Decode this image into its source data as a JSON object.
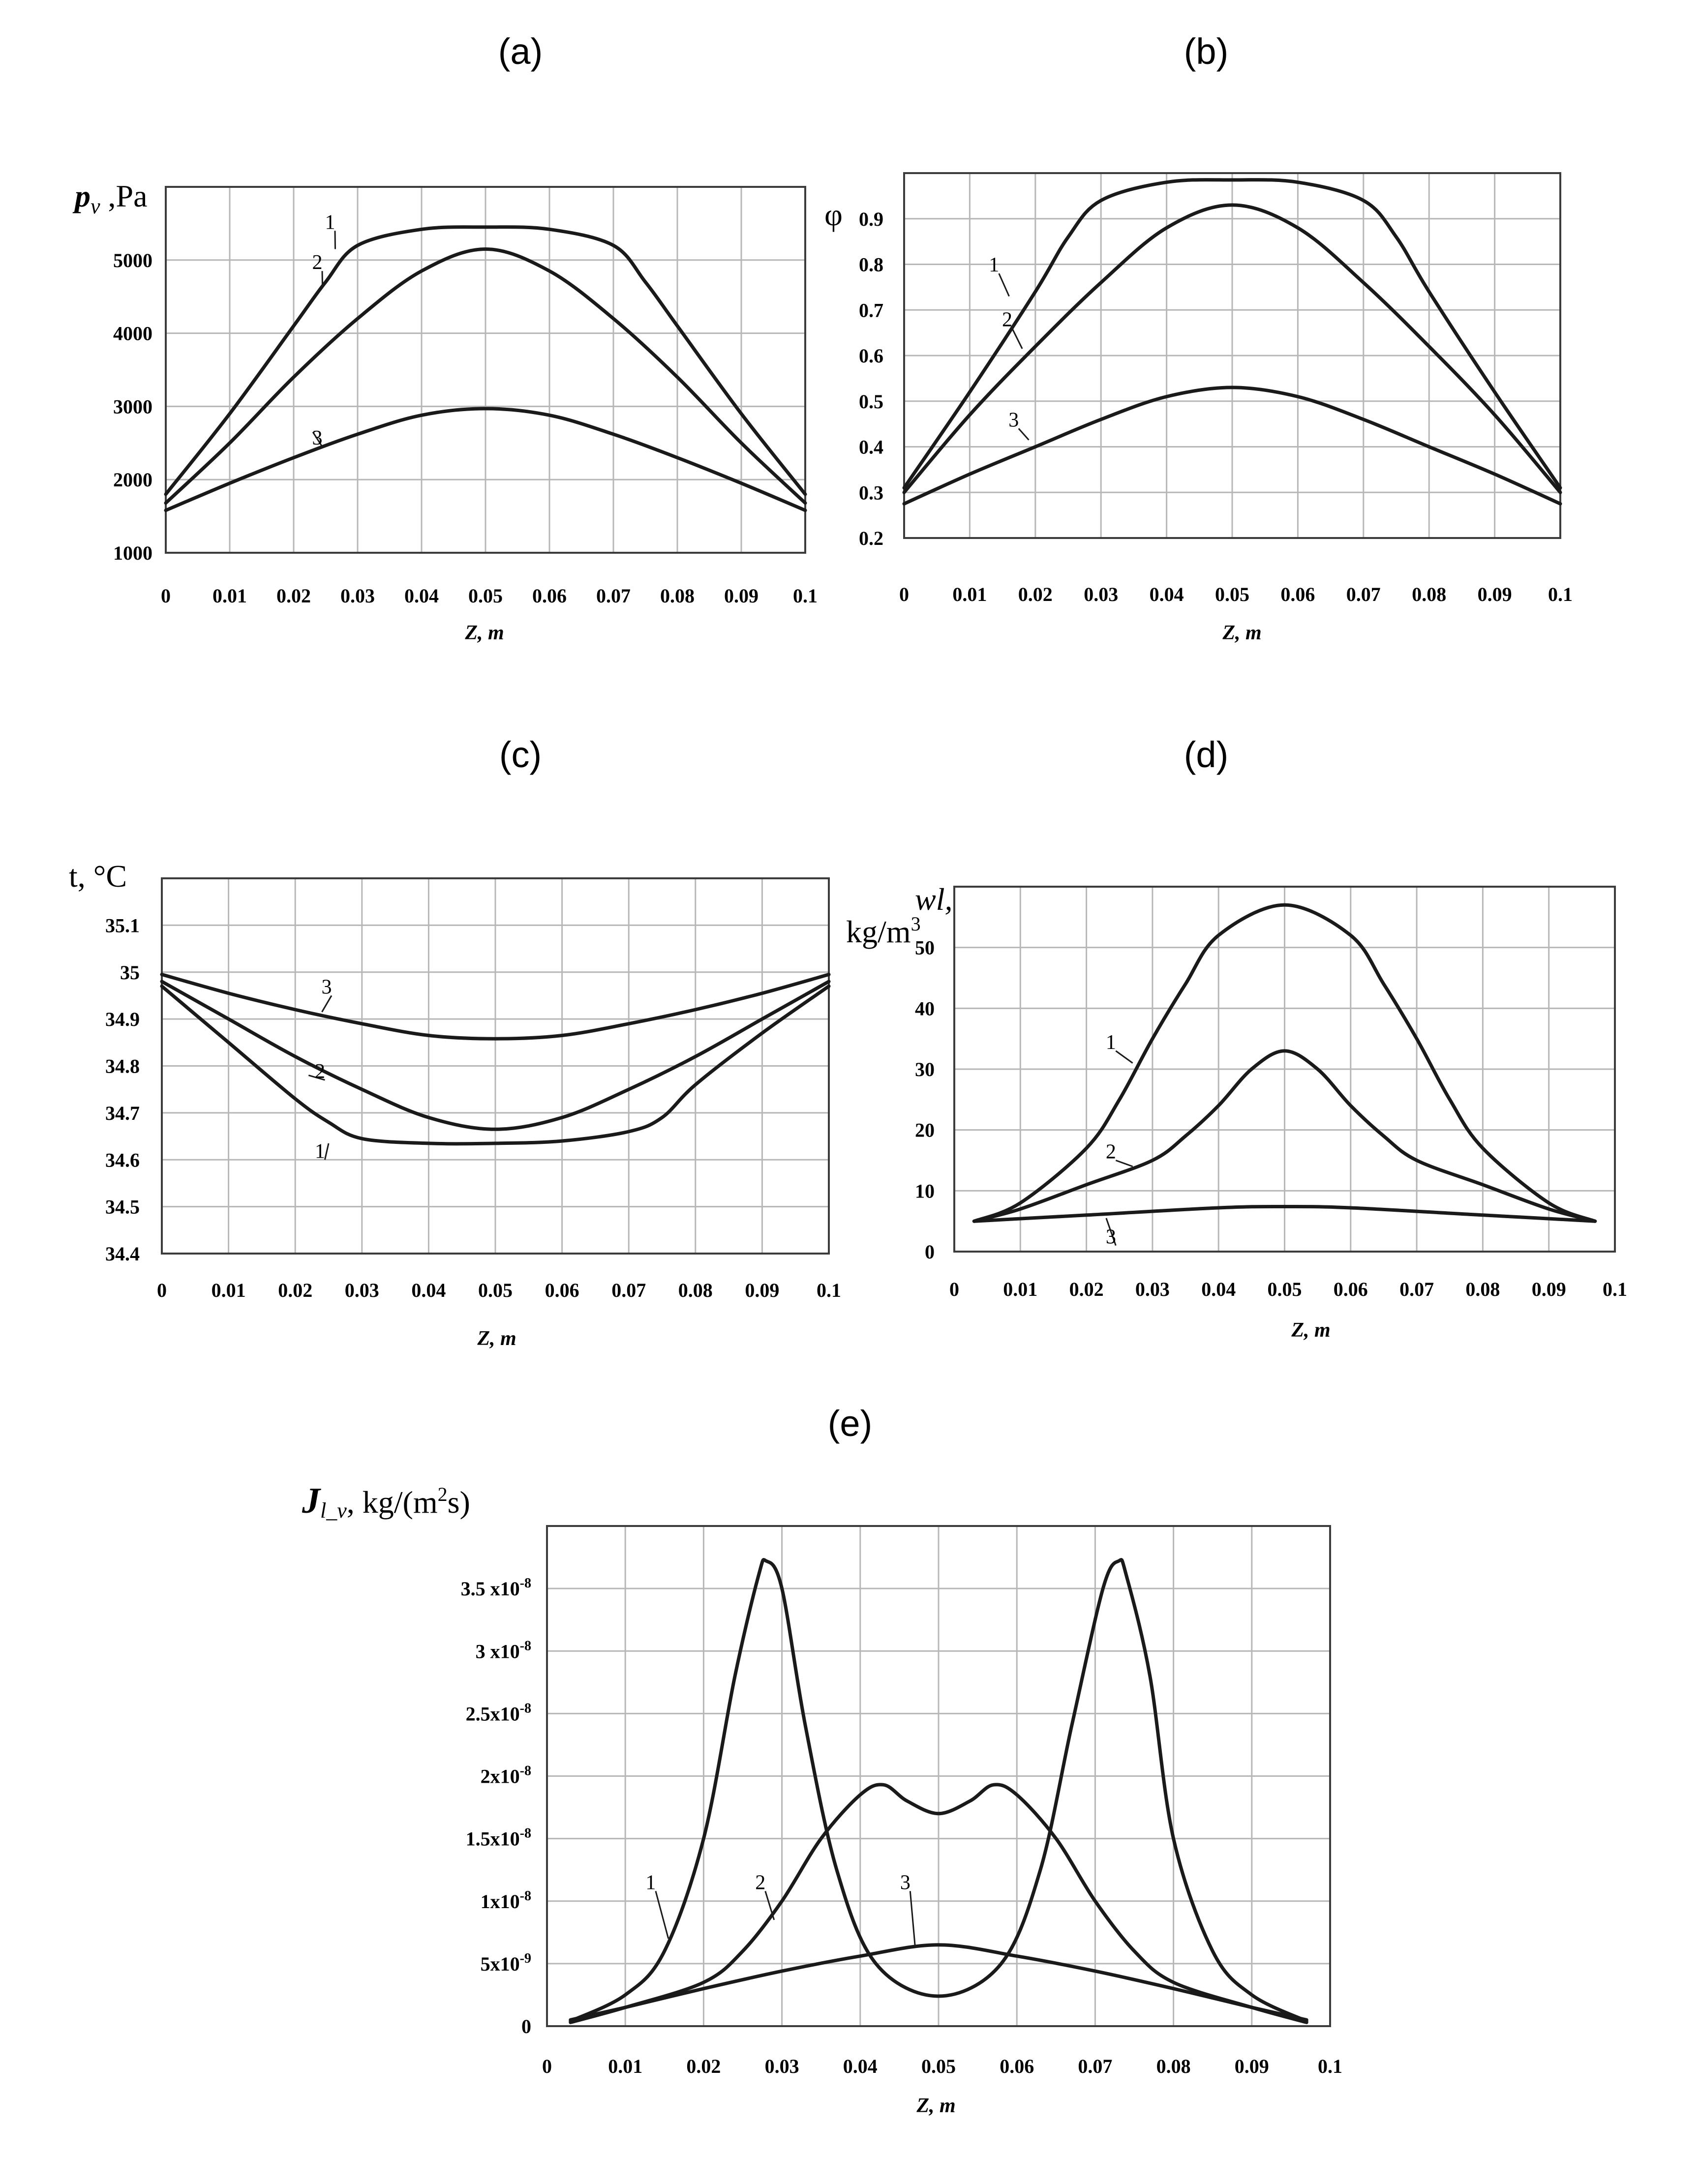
{
  "chart_data": [
    {
      "id": "a",
      "panel_label": "(a)",
      "type": "line",
      "ylabel": "p_v ,Pa",
      "ylabel_html": {
        "main": "p",
        "sub": "v",
        "tail": " ,Pa"
      },
      "xlabel": "Z, m",
      "xlim": [
        0,
        0.1
      ],
      "ylim": [
        1000,
        6000
      ],
      "xticks": [
        "0",
        "0.01",
        "0.02",
        "0.03",
        "0.04",
        "0.05",
        "0.06",
        "0.07",
        "0.08",
        "0.09",
        "0.1"
      ],
      "yticks": [
        {
          "v": 1000,
          "t": "1000"
        },
        {
          "v": 2000,
          "t": "2000"
        },
        {
          "v": 3000,
          "t": "3000"
        },
        {
          "v": 4000,
          "t": "4000"
        },
        {
          "v": 5000,
          "t": "5000"
        }
      ],
      "series": [
        {
          "name": "1",
          "x": [
            0,
            0.01,
            0.02,
            0.025,
            0.03,
            0.04,
            0.05,
            0.06,
            0.07,
            0.075,
            0.08,
            0.09,
            0.1
          ],
          "y": [
            1800,
            2900,
            4100,
            4700,
            5200,
            5420,
            5450,
            5420,
            5200,
            4700,
            4100,
            2900,
            1800
          ]
        },
        {
          "name": "2",
          "x": [
            0,
            0.01,
            0.02,
            0.03,
            0.04,
            0.05,
            0.06,
            0.07,
            0.08,
            0.09,
            0.1
          ],
          "y": [
            1680,
            2500,
            3400,
            4200,
            4850,
            5150,
            4850,
            4200,
            3400,
            2500,
            1680
          ]
        },
        {
          "name": "3",
          "x": [
            0,
            0.01,
            0.02,
            0.03,
            0.04,
            0.05,
            0.06,
            0.07,
            0.08,
            0.09,
            0.1
          ],
          "y": [
            1580,
            1950,
            2300,
            2620,
            2880,
            2970,
            2880,
            2620,
            2300,
            1950,
            1580
          ]
        }
      ],
      "labels": [
        {
          "text": "1",
          "x": 0.026,
          "y": 5400,
          "tx": 0.0265,
          "ty": 5150
        },
        {
          "text": "2",
          "x": 0.024,
          "y": 4850,
          "tx": 0.0245,
          "ty": 4650
        },
        {
          "text": "3",
          "x": 0.024,
          "y": 2450,
          "tx": 0.023,
          "ty": 2650
        }
      ]
    },
    {
      "id": "b",
      "panel_label": "(b)",
      "type": "line",
      "ylabel": "φ",
      "xlabel": "Z, m",
      "xlim": [
        0,
        0.1
      ],
      "ylim": [
        0.2,
        1.0
      ],
      "xticks": [
        "0",
        "0.01",
        "0.02",
        "0.03",
        "0.04",
        "0.05",
        "0.06",
        "0.07",
        "0.08",
        "0.09",
        "0.1"
      ],
      "yticks": [
        {
          "v": 0.2,
          "t": "0.2"
        },
        {
          "v": 0.3,
          "t": "0.3"
        },
        {
          "v": 0.4,
          "t": "0.4"
        },
        {
          "v": 0.5,
          "t": "0.5"
        },
        {
          "v": 0.6,
          "t": "0.6"
        },
        {
          "v": 0.7,
          "t": "0.7"
        },
        {
          "v": 0.8,
          "t": "0.8"
        },
        {
          "v": 0.9,
          "t": "0.9"
        }
      ],
      "series": [
        {
          "name": "1",
          "x": [
            0,
            0.01,
            0.02,
            0.025,
            0.03,
            0.04,
            0.05,
            0.06,
            0.07,
            0.075,
            0.08,
            0.09,
            0.1
          ],
          "y": [
            0.31,
            0.52,
            0.74,
            0.86,
            0.94,
            0.98,
            0.985,
            0.98,
            0.94,
            0.86,
            0.74,
            0.52,
            0.31
          ],
          "smooth": true
        },
        {
          "name": "2",
          "x": [
            0,
            0.01,
            0.02,
            0.03,
            0.04,
            0.05,
            0.06,
            0.07,
            0.08,
            0.09,
            0.1
          ],
          "y": [
            0.3,
            0.47,
            0.62,
            0.76,
            0.88,
            0.93,
            0.88,
            0.76,
            0.62,
            0.47,
            0.3
          ]
        },
        {
          "name": "3",
          "x": [
            0,
            0.01,
            0.02,
            0.03,
            0.04,
            0.05,
            0.06,
            0.07,
            0.08,
            0.09,
            0.1
          ],
          "y": [
            0.275,
            0.34,
            0.4,
            0.46,
            0.51,
            0.53,
            0.51,
            0.46,
            0.4,
            0.34,
            0.275
          ]
        }
      ],
      "labels": [
        {
          "text": "1",
          "x": 0.014,
          "y": 0.78,
          "tx": 0.016,
          "ty": 0.73
        },
        {
          "text": "2",
          "x": 0.016,
          "y": 0.66,
          "tx": 0.018,
          "ty": 0.615
        },
        {
          "text": "3",
          "x": 0.017,
          "y": 0.44,
          "tx": 0.019,
          "ty": 0.415
        }
      ]
    },
    {
      "id": "c",
      "panel_label": "(c)",
      "type": "line",
      "ylabel": "t, °C",
      "xlabel": "Z, m",
      "xlim": [
        0,
        0.1
      ],
      "ylim": [
        34.4,
        35.2
      ],
      "xticks": [
        "0",
        "0.01",
        "0.02",
        "0.03",
        "0.04",
        "0.05",
        "0.06",
        "0.07",
        "0.08",
        "0.09",
        "0.1"
      ],
      "yticks": [
        {
          "v": 34.4,
          "t": "34.4"
        },
        {
          "v": 34.5,
          "t": "34.5"
        },
        {
          "v": 34.6,
          "t": "34.6"
        },
        {
          "v": 34.7,
          "t": "34.7"
        },
        {
          "v": 34.8,
          "t": "34.8"
        },
        {
          "v": 34.9,
          "t": "34.9"
        },
        {
          "v": 35.0,
          "t": "35"
        },
        {
          "v": 35.1,
          "t": "35.1"
        }
      ],
      "series": [
        {
          "name": "1",
          "x": [
            0,
            0.01,
            0.02,
            0.025,
            0.03,
            0.04,
            0.05,
            0.06,
            0.07,
            0.075,
            0.08,
            0.09,
            0.1
          ],
          "y": [
            34.97,
            34.85,
            34.73,
            34.68,
            34.645,
            34.635,
            34.635,
            34.64,
            34.66,
            34.69,
            34.76,
            34.87,
            34.97
          ]
        },
        {
          "name": "2",
          "x": [
            0,
            0.01,
            0.02,
            0.03,
            0.04,
            0.05,
            0.06,
            0.07,
            0.08,
            0.09,
            0.1
          ],
          "y": [
            34.98,
            34.9,
            34.82,
            34.75,
            34.69,
            34.665,
            34.69,
            34.75,
            34.82,
            34.9,
            34.98
          ]
        },
        {
          "name": "3",
          "x": [
            0,
            0.01,
            0.02,
            0.03,
            0.04,
            0.05,
            0.06,
            0.07,
            0.08,
            0.09,
            0.1
          ],
          "y": [
            34.995,
            34.955,
            34.92,
            34.89,
            34.865,
            34.858,
            34.865,
            34.89,
            34.92,
            34.955,
            34.995
          ]
        }
      ],
      "labels": [
        {
          "text": "1",
          "x": 0.024,
          "y": 34.6,
          "tx": 0.025,
          "ty": 34.635
        },
        {
          "text": "2",
          "x": 0.024,
          "y": 34.77,
          "tx": 0.022,
          "ty": 34.78
        },
        {
          "text": "3",
          "x": 0.025,
          "y": 34.95,
          "tx": 0.024,
          "ty": 34.915
        }
      ]
    },
    {
      "id": "d",
      "panel_label": "(d)",
      "type": "line",
      "ylabel": "wl, kg/m3",
      "ylabel_html": {
        "line1": "wl,",
        "line2": "kg/m",
        "sup": "3"
      },
      "xlabel": "Z, m",
      "xlim": [
        0,
        0.1
      ],
      "ylim": [
        0,
        60
      ],
      "xticks": [
        "0",
        "0.01",
        "0.02",
        "0.03",
        "0.04",
        "0.05",
        "0.06",
        "0.07",
        "0.08",
        "0.09",
        "0.1"
      ],
      "yticks": [
        {
          "v": 0,
          "t": "0"
        },
        {
          "v": 10,
          "t": "10"
        },
        {
          "v": 20,
          "t": "20"
        },
        {
          "v": 30,
          "t": "30"
        },
        {
          "v": 40,
          "t": "40"
        },
        {
          "v": 50,
          "t": "50"
        }
      ],
      "series": [
        {
          "name": "1",
          "x": [
            0.003,
            0.01,
            0.02,
            0.025,
            0.03,
            0.035,
            0.04,
            0.05,
            0.06,
            0.065,
            0.07,
            0.075,
            0.08,
            0.09,
            0.097
          ],
          "y": [
            5,
            8,
            17,
            25,
            35,
            44,
            52,
            57,
            52,
            44,
            35,
            25,
            17,
            8,
            5
          ]
        },
        {
          "name": "2",
          "x": [
            0.003,
            0.01,
            0.02,
            0.03,
            0.035,
            0.04,
            0.045,
            0.05,
            0.055,
            0.06,
            0.065,
            0.07,
            0.08,
            0.09,
            0.097
          ],
          "y": [
            5,
            7,
            11,
            15,
            19,
            24,
            30,
            33,
            30,
            24,
            19,
            15,
            11,
            7,
            5
          ]
        },
        {
          "name": "3",
          "x": [
            0.003,
            0.02,
            0.04,
            0.05,
            0.06,
            0.08,
            0.097
          ],
          "y": [
            5,
            6,
            7.2,
            7.4,
            7.2,
            6,
            5
          ]
        }
      ],
      "labels": [
        {
          "text": "1",
          "x": 0.024,
          "y": 33,
          "tx": 0.027,
          "ty": 31
        },
        {
          "text": "2",
          "x": 0.024,
          "y": 15,
          "tx": 0.027,
          "ty": 14
        },
        {
          "text": "3",
          "x": 0.024,
          "y": 1,
          "tx": 0.023,
          "ty": 5.5
        }
      ]
    },
    {
      "id": "e",
      "panel_label": "(e)",
      "type": "line",
      "ylabel": "J l_v, kg/(m2s)",
      "ylabel_html": {
        "main": "J",
        "sub": "l_v",
        "tail": ", kg/(m",
        "sup": "2",
        "tail2": "s)"
      },
      "xlabel": "Z, m",
      "xlim": [
        0,
        0.1
      ],
      "ylim": [
        0,
        4e-08
      ],
      "xticks": [
        "0",
        "0.01",
        "0.02",
        "0.03",
        "0.04",
        "0.05",
        "0.06",
        "0.07",
        "0.08",
        "0.09",
        "0.1"
      ],
      "yticks": [
        {
          "v": 0,
          "base": "0",
          "exp": ""
        },
        {
          "v": 5e-09,
          "base": "5x10",
          "exp": "-9"
        },
        {
          "v": 1e-08,
          "base": "1x10",
          "exp": "-8"
        },
        {
          "v": 1.5e-08,
          "base": "1.5x10",
          "exp": "-8"
        },
        {
          "v": 2e-08,
          "base": "2x10",
          "exp": "-8"
        },
        {
          "v": 2.5e-08,
          "base": "2.5x10",
          "exp": "-8"
        },
        {
          "v": 3e-08,
          "base": "3 x10",
          "exp": "-8"
        },
        {
          "v": 3.5e-08,
          "base": "3.5 x10",
          "exp": "-8"
        }
      ],
      "series": [
        {
          "name": "1",
          "x": [
            0.003,
            0.01,
            0.015,
            0.02,
            0.024,
            0.027,
            0.028,
            0.03,
            0.033,
            0.037,
            0.042,
            0.05,
            0.058,
            0.063,
            0.067,
            0.071,
            0.073,
            0.074,
            0.077,
            0.08,
            0.085,
            0.09,
            0.097
          ],
          "y": [
            4e-10,
            2.5e-09,
            6e-09,
            1.5e-08,
            2.8e-08,
            3.6e-08,
            3.72e-08,
            3.5e-08,
            2.4e-08,
            1.25e-08,
            5e-09,
            2.4e-09,
            5e-09,
            1.25e-08,
            2.4e-08,
            3.5e-08,
            3.72e-08,
            3.6e-08,
            2.8e-08,
            1.5e-08,
            6e-09,
            2.5e-09,
            4e-10
          ]
        },
        {
          "name": "2",
          "x": [
            0.003,
            0.01,
            0.02,
            0.025,
            0.03,
            0.035,
            0.04,
            0.043,
            0.046,
            0.05,
            0.054,
            0.057,
            0.06,
            0.065,
            0.07,
            0.075,
            0.08,
            0.09,
            0.097
          ],
          "y": [
            3e-10,
            1.5e-09,
            3.5e-09,
            6e-09,
            1e-08,
            1.5e-08,
            1.85e-08,
            1.93e-08,
            1.8e-08,
            1.7e-08,
            1.8e-08,
            1.93e-08,
            1.85e-08,
            1.5e-08,
            1e-08,
            6e-09,
            3.5e-09,
            1.5e-09,
            3e-10
          ]
        },
        {
          "name": "3",
          "x": [
            0.003,
            0.01,
            0.02,
            0.03,
            0.04,
            0.05,
            0.06,
            0.07,
            0.08,
            0.09,
            0.097
          ],
          "y": [
            5e-10,
            1.5e-09,
            3e-09,
            4.4e-09,
            5.6e-09,
            6.5e-09,
            5.6e-09,
            4.4e-09,
            3e-09,
            1.5e-09,
            5e-10
          ]
        }
      ],
      "labels": [
        {
          "text": "1",
          "x": 0.0135,
          "y": 1.08e-08,
          "tx": 0.0155,
          "ty": 7e-09
        },
        {
          "text": "2",
          "x": 0.0275,
          "y": 1.08e-08,
          "tx": 0.029,
          "ty": 8.5e-09
        },
        {
          "text": "3",
          "x": 0.046,
          "y": 1.08e-08,
          "tx": 0.047,
          "ty": 6.4e-09
        }
      ]
    }
  ]
}
